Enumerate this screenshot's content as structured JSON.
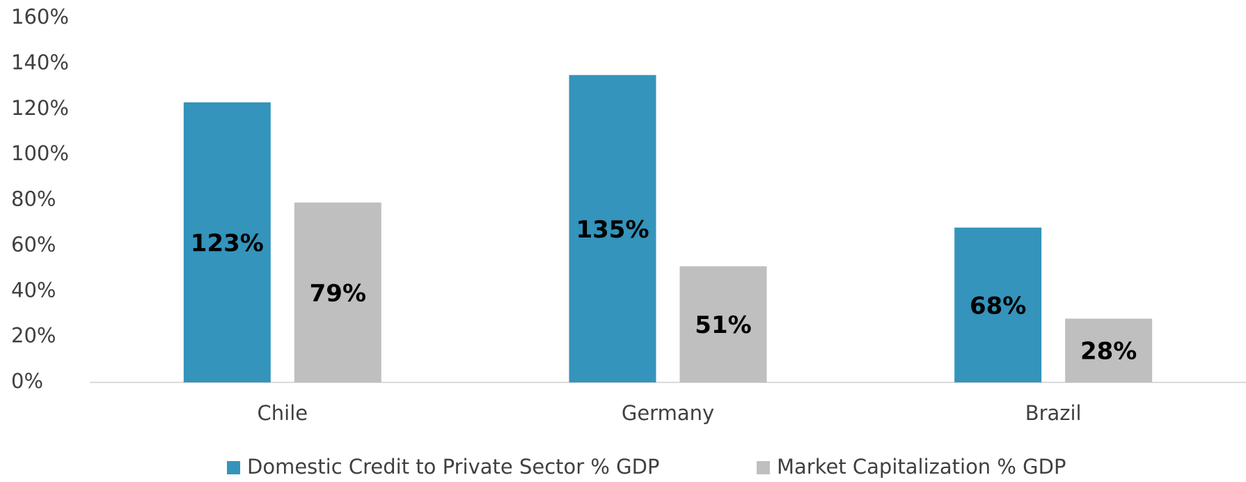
{
  "chart_data": {
    "type": "bar",
    "categories": [
      "Chile",
      "Germany",
      "Brazil"
    ],
    "series": [
      {
        "name": "Domestic Credit to Private Sector % GDP",
        "color": "#3494bb",
        "values": [
          123,
          135,
          68
        ],
        "value_labels": [
          "123%",
          "135%",
          "68%"
        ]
      },
      {
        "name": "Market Capitalization % GDP",
        "color": "#bfbfbf",
        "values": [
          79,
          51,
          28
        ],
        "value_labels": [
          "79%",
          "51%",
          "28%"
        ]
      }
    ],
    "ylim": [
      0,
      160
    ],
    "yticks": [
      {
        "value": 0,
        "label": "0%"
      },
      {
        "value": 20,
        "label": "20%"
      },
      {
        "value": 40,
        "label": "40%"
      },
      {
        "value": 60,
        "label": "60%"
      },
      {
        "value": 80,
        "label": "80%"
      },
      {
        "value": 100,
        "label": "100%"
      },
      {
        "value": 120,
        "label": "120%"
      },
      {
        "value": 140,
        "label": "140%"
      },
      {
        "value": 160,
        "label": "160%"
      }
    ],
    "grid": false,
    "legend": "bottom"
  }
}
